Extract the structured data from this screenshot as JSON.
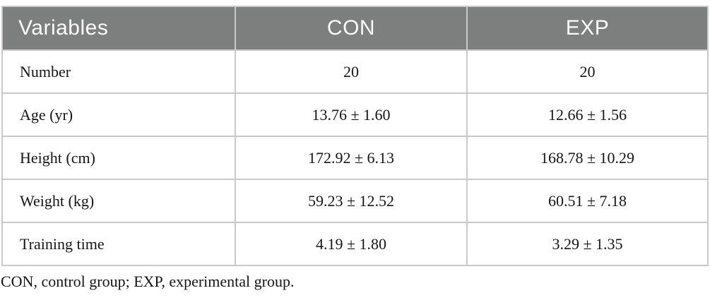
{
  "table": {
    "columns": [
      "Variables",
      "CON",
      "EXP"
    ],
    "rows": [
      {
        "label": "Number",
        "con": "20",
        "exp": "20"
      },
      {
        "label": "Age (yr)",
        "con": "13.76 ± 1.60",
        "exp": "12.66 ± 1.56"
      },
      {
        "label": "Height (cm)",
        "con": "172.92 ± 6.13",
        "exp": "168.78 ± 10.29"
      },
      {
        "label": "Weight (kg)",
        "con": "59.23 ± 12.52",
        "exp": "60.51 ± 7.18"
      },
      {
        "label": "Training time",
        "con": "4.19 ± 1.80",
        "exp": "3.29 ± 1.35"
      }
    ],
    "footnote": "CON, control group; EXP, experimental group."
  },
  "colors": {
    "header_bg": "#7d7f7f",
    "header_text": "#fafafa",
    "body_text": "#161616",
    "border": "#c9c9c9",
    "page_bg": "#ffffff"
  }
}
